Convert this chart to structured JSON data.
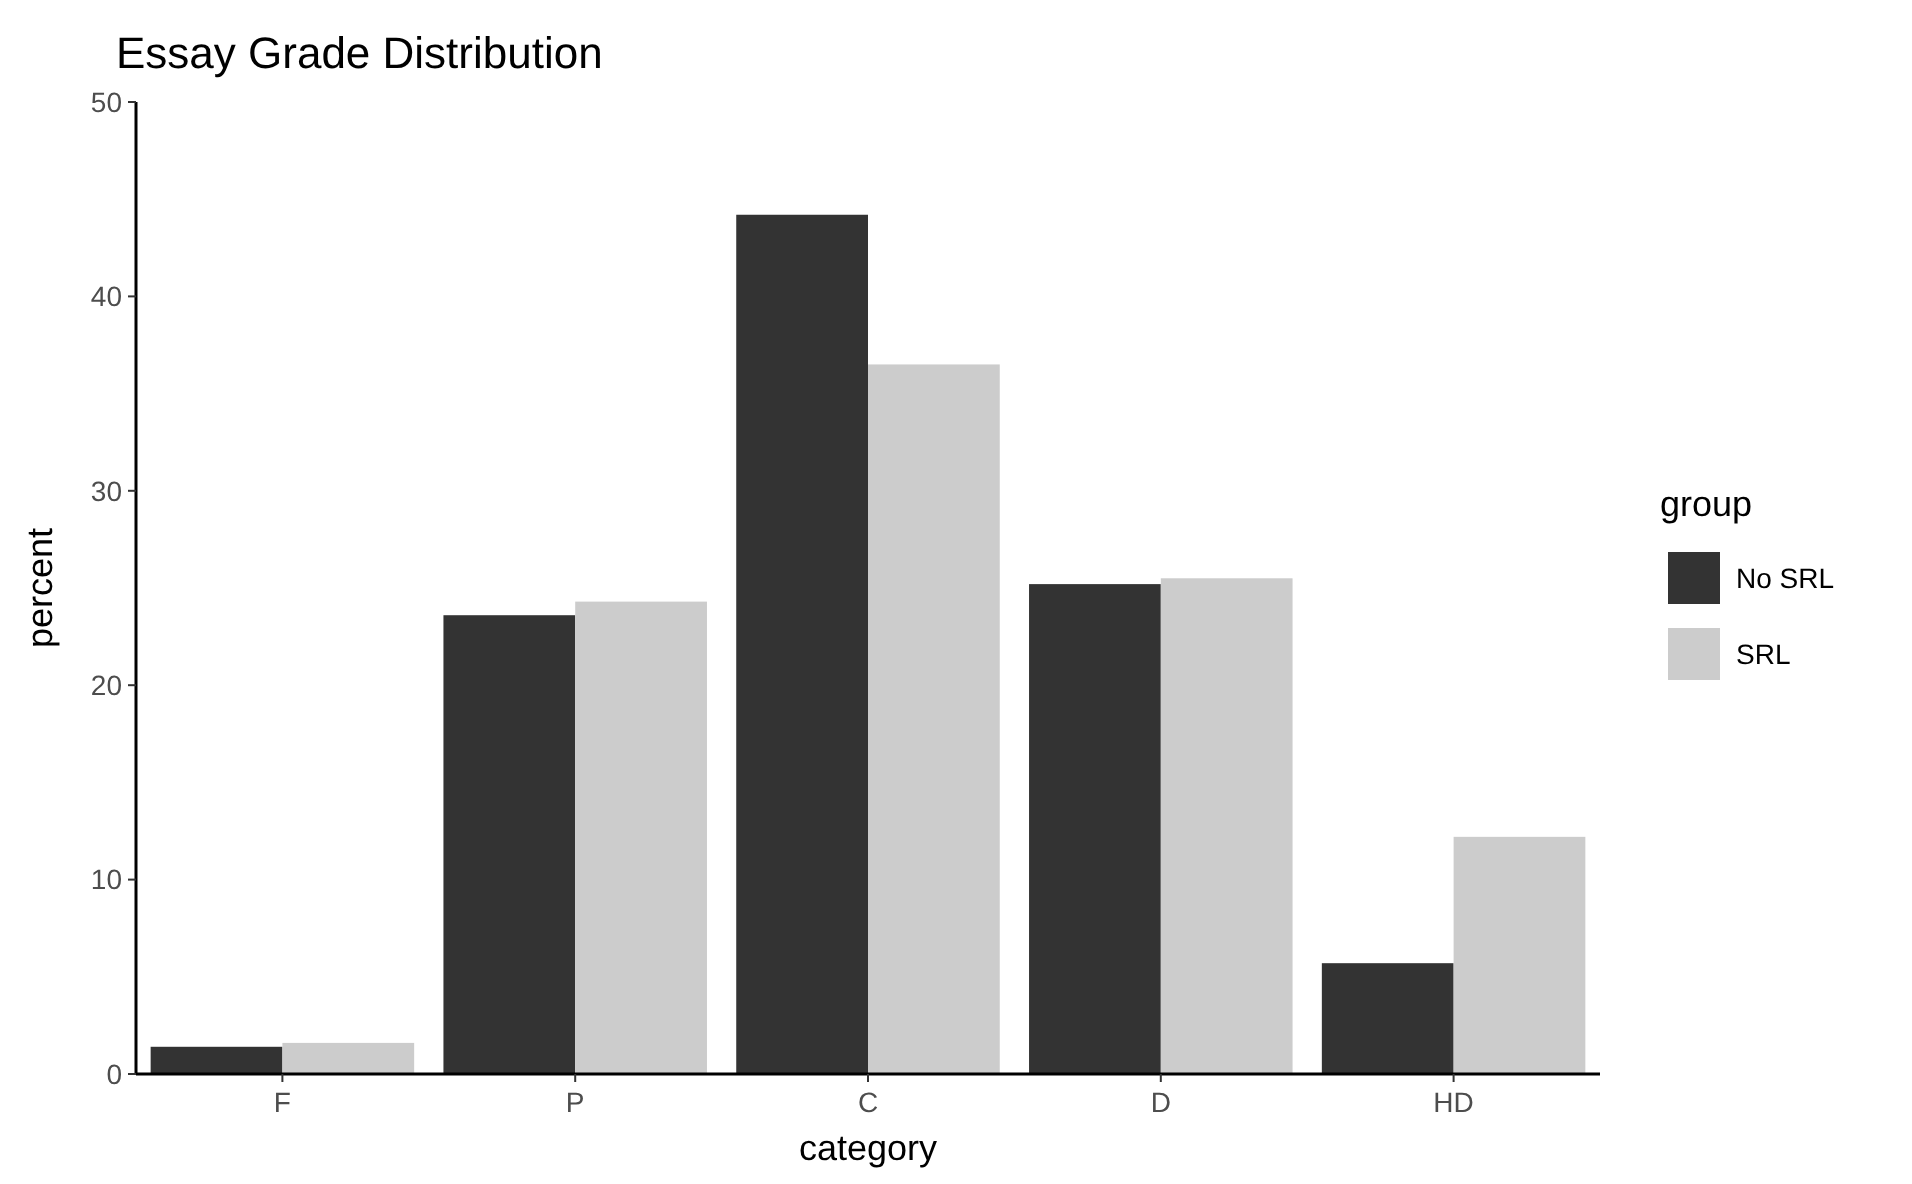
{
  "chart_data": {
    "type": "bar",
    "title": "Essay Grade Distribution",
    "xlabel": "category",
    "ylabel": "percent",
    "legend_title": "group",
    "categories": [
      "F",
      "P",
      "C",
      "D",
      "HD"
    ],
    "series": [
      {
        "name": "No SRL",
        "color": "#333333",
        "values": [
          1.4,
          23.6,
          44.2,
          25.2,
          5.7
        ]
      },
      {
        "name": "SRL",
        "color": "#cccccc",
        "values": [
          1.6,
          24.3,
          36.5,
          25.5,
          12.2
        ]
      }
    ],
    "ylim": [
      0,
      50
    ],
    "yticks": [
      0,
      10,
      20,
      30,
      40,
      50
    ],
    "grid": false,
    "legend": "right"
  }
}
